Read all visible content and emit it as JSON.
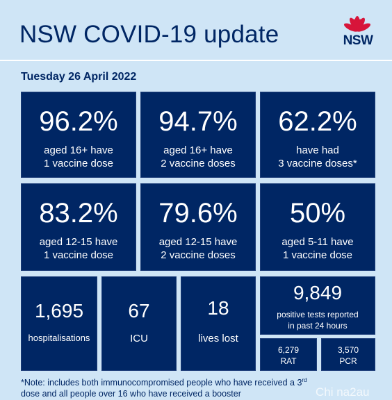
{
  "header": {
    "title": "NSW COVID-19 update",
    "logo_text": "NSW"
  },
  "date": "Tuesday 26 April 2022",
  "vaccination": [
    {
      "value": "96.2%",
      "line1": "aged 16+ have",
      "line2": "1 vaccine dose"
    },
    {
      "value": "94.7%",
      "line1": "aged 16+ have",
      "line2": "2 vaccine doses"
    },
    {
      "value": "62.2%",
      "line1": "have had",
      "line2": "3 vaccine doses*"
    },
    {
      "value": "83.2%",
      "line1": "aged 12-15 have",
      "line2": "1 vaccine dose"
    },
    {
      "value": "79.6%",
      "line1": "aged 12-15 have",
      "line2": "2 vaccine doses"
    },
    {
      "value": "50%",
      "line1": "aged 5-11 have",
      "line2": "1 vaccine dose"
    }
  ],
  "hospital": {
    "hospitalisations": {
      "value": "1,695",
      "label": "hospitalisations"
    },
    "icu": {
      "value": "67",
      "label": "ICU"
    },
    "deaths": {
      "value": "18",
      "label": "lives lost"
    }
  },
  "tests": {
    "value": "9,849",
    "line1": "positive tests reported",
    "line2": "in past 24 hours",
    "rat": {
      "value": "6,279",
      "label": "RAT"
    },
    "pcr": {
      "value": "3,570",
      "label": "PCR"
    }
  },
  "note": {
    "line1_a": "*Note: includes both immunocompromised people who have received a 3",
    "line1_sup": "rd",
    "line2": "dose and all people over 16 who have received a booster"
  },
  "watermark": "Chi na2au",
  "colors": {
    "navy": "#002664",
    "background": "#cfe5f6",
    "waratah_red": "#d7153a"
  }
}
